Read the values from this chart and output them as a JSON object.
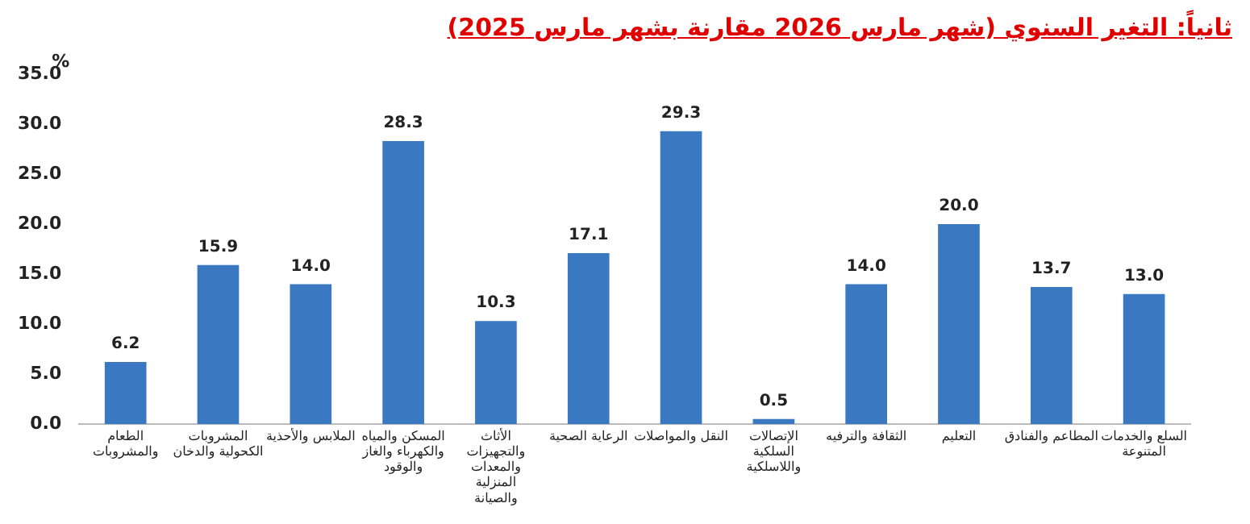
{
  "chart_data": {
    "type": "bar",
    "title": "ثانياً: التغير السنوي (شهر مارس 2026 مقارنة بشهر مارس 2025)",
    "ylabel": "%",
    "categories": [
      "الطعام والمشروبات",
      "المشروبات الكحولية والدخان",
      "الملابس والأحذية",
      "المسكن والمياه والكهرباء والغاز والوقود",
      "الأثاث والتجهيزات والمعدات المنزلية والصيانة",
      "الرعاية الصحية",
      "النقل والمواصلات",
      "الإتصالات السلكية واللاسلكية",
      "الثقافة والترفيه",
      "التعليم",
      "المطاعم والفنادق",
      "السلع والخدمات المتنوعة"
    ],
    "values": [
      6.2,
      15.9,
      14.0,
      28.3,
      10.3,
      17.1,
      29.3,
      0.5,
      14.0,
      20.0,
      13.7,
      13.0
    ],
    "value_labels": [
      "6.2",
      "15.9",
      "14.0",
      "28.3",
      "10.3",
      "17.1",
      "29.3",
      "0.5",
      "14.0",
      "20.0",
      "13.7",
      "13.0"
    ],
    "color": "#3a78c2",
    "ylim": [
      0,
      35
    ],
    "yticks": [
      {
        "value": 0,
        "label": "0.0"
      },
      {
        "value": 5,
        "label": "5.0"
      },
      {
        "value": 10,
        "label": "10.0"
      },
      {
        "value": 15,
        "label": "15.0"
      },
      {
        "value": 20,
        "label": "20.0"
      },
      {
        "value": 25,
        "label": "25.0"
      },
      {
        "value": 30,
        "label": "30.0"
      },
      {
        "value": 35,
        "label": "35.0"
      }
    ],
    "grid": false,
    "legend": false
  }
}
